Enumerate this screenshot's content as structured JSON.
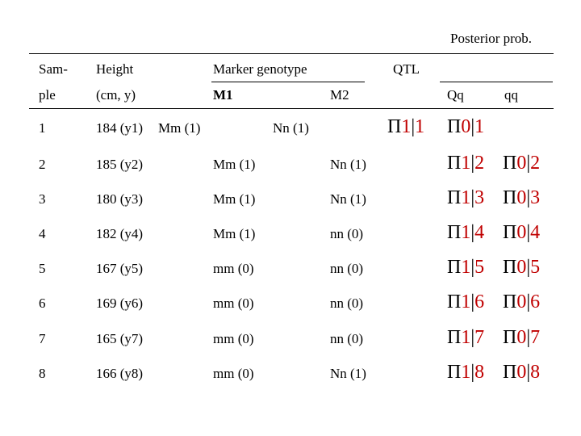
{
  "header": {
    "posterior": "Posterior prob.",
    "sample_l1": "Sam-",
    "sample_l2": "ple",
    "height_l1": "Height",
    "height_l2": "(cm, y)",
    "marker_genotype": "Marker genotype",
    "m1": "M1",
    "m2": "M2",
    "qtl": "QTL",
    "qq_upper": "Qq",
    "qq_lower": "qq"
  },
  "rows": [
    {
      "sample": "1",
      "height": "184 (y1)",
      "m1": "Mm (1)",
      "m2": "Nn (1)",
      "qq_pi": "Π",
      "qq_num": "1",
      "qq_sep": "|",
      "qq_idx": "1",
      "qq2_pi": "Π",
      "qq2_num": "0",
      "qq2_sep": "|",
      "qq2_idx": "1"
    },
    {
      "sample": "2",
      "height": "185 (y2)",
      "m1": "Mm (1)",
      "m2": "Nn (1)",
      "qq_pi": "Π",
      "qq_num": "1",
      "qq_sep": "|",
      "qq_idx": "2",
      "qq2_pi": "Π",
      "qq2_num": "0",
      "qq2_sep": "|",
      "qq2_idx": "2"
    },
    {
      "sample": "3",
      "height": "180 (y3)",
      "m1": "Mm (1)",
      "m2": "Nn (1)",
      "qq_pi": "Π",
      "qq_num": "1",
      "qq_sep": "|",
      "qq_idx": "3",
      "qq2_pi": "Π",
      "qq2_num": "0",
      "qq2_sep": "|",
      "qq2_idx": "3"
    },
    {
      "sample": "4",
      "height": "182 (y4)",
      "m1": "Mm (1)",
      "m2": "nn (0)",
      "qq_pi": "Π",
      "qq_num": "1",
      "qq_sep": "|",
      "qq_idx": "4",
      "qq2_pi": "Π",
      "qq2_num": "0",
      "qq2_sep": "|",
      "qq2_idx": "4"
    },
    {
      "sample": "5",
      "height": "167 (y5)",
      "m1": "mm (0)",
      "m2": "nn (0)",
      "qq_pi": "Π",
      "qq_num": "1",
      "qq_sep": "|",
      "qq_idx": "5",
      "qq2_pi": "Π",
      "qq2_num": "0",
      "qq2_sep": "|",
      "qq2_idx": "5"
    },
    {
      "sample": "6",
      "height": "169 (y6)",
      "m1": "mm (0)",
      "m2": "nn (0)",
      "qq_pi": "Π",
      "qq_num": "1",
      "qq_sep": "|",
      "qq_idx": "6",
      "qq2_pi": "Π",
      "qq2_num": "0",
      "qq2_sep": "|",
      "qq2_idx": "6"
    },
    {
      "sample": "7",
      "height": "165 (y7)",
      "m1": "mm (0)",
      "m2": "nn (0)",
      "qq_pi": "Π",
      "qq_num": "1",
      "qq_sep": "|",
      "qq_idx": "7",
      "qq2_pi": "Π",
      "qq2_num": "0",
      "qq2_sep": "|",
      "qq2_idx": "7"
    },
    {
      "sample": "8",
      "height": "166 (y8)",
      "m1": "mm (0)",
      "m2": "Nn (1)",
      "qq_pi": "Π",
      "qq_num": "1",
      "qq_sep": "|",
      "qq_idx": "8",
      "qq2_pi": "Π",
      "qq2_num": "0",
      "qq2_sep": "|",
      "qq2_idx": "8"
    }
  ],
  "colors": {
    "accent_red": "#c00000",
    "text": "#000000"
  }
}
